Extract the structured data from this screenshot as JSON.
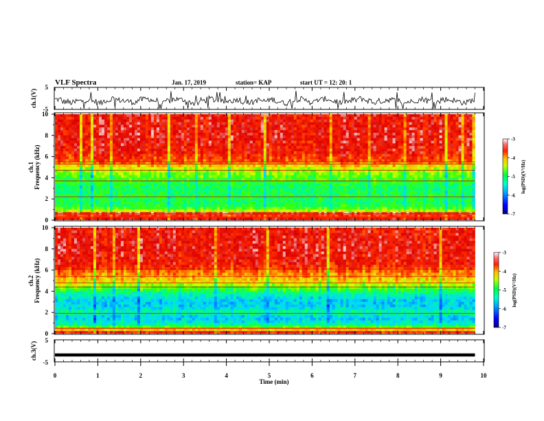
{
  "header": {
    "title": "VLF Spectra",
    "date": "Jan. 17, 2019",
    "station": "station= KAP",
    "start": "start  UT =   12: 20: 1"
  },
  "chart_data": [
    {
      "type": "line",
      "panel": "ch1-waveform",
      "ylabel": "ch.1(V)",
      "ylim": [
        -5,
        5
      ],
      "yticks": [
        "5",
        "-5"
      ],
      "xlim": [
        0,
        10
      ],
      "samples": [
        -0.5,
        -1.6,
        -2.1,
        -1.3,
        -0.8,
        -1.5,
        -2.2,
        -1.0,
        0.0,
        -0.9,
        -1.4,
        -1.8,
        -0.6,
        -0.3,
        -1.1,
        -2.5,
        -1.2,
        -0.4,
        -0.7,
        -1.9,
        -2.4,
        -1.0,
        -0.2,
        -0.8,
        -1.7,
        -1.1,
        -0.5,
        -1.5,
        -2.0,
        -0.9,
        -1.3,
        -0.6,
        -1.6,
        -2.3,
        -1.2,
        -0.4,
        -1.0,
        -1.8,
        -0.7,
        -0.3,
        -1.4,
        -2.1,
        -1.5,
        -0.8,
        -0.2,
        -1.1,
        -1.9,
        -1.3,
        -0.6,
        -1.0,
        -2.2,
        -1.6,
        -0.9,
        -0.4,
        -1.2,
        -1.7,
        -0.5,
        -0.8,
        -1.5,
        -2.0,
        -1.1,
        -0.3
      ]
    },
    {
      "type": "heatmap",
      "panel": "ch1-spectrogram",
      "ylabel": "ch.1\nFrequency (kHz)",
      "ylim": [
        0,
        10
      ],
      "yticks": [
        "0",
        "2",
        "4",
        "6",
        "8",
        "10"
      ],
      "xlim": [
        0,
        10
      ],
      "profile": [
        {
          "f": 0.0,
          "level": 0.95
        },
        {
          "f": 0.3,
          "level": 0.75
        },
        {
          "f": 0.6,
          "level": 0.95
        },
        {
          "f": 0.9,
          "level": 0.55
        },
        {
          "f": 1.5,
          "level": 0.42
        },
        {
          "f": 2.2,
          "level": 0.45
        },
        {
          "f": 3.0,
          "level": 0.42
        },
        {
          "f": 3.8,
          "level": 0.48
        },
        {
          "f": 4.5,
          "level": 0.55
        },
        {
          "f": 5.0,
          "level": 0.62
        },
        {
          "f": 5.5,
          "level": 0.78
        },
        {
          "f": 6.5,
          "level": 0.86
        },
        {
          "f": 8.0,
          "level": 0.88
        },
        {
          "f": 10.0,
          "level": 0.86
        }
      ],
      "lines_khz": [
        0.3,
        0.6,
        2.2,
        3.7,
        4.7,
        5.3,
        5.5
      ],
      "colorbar": {
        "label": "log(PSD)(V²/Hz)",
        "ticks": [
          "-3",
          "-4",
          "-5",
          "-6",
          "-7"
        ],
        "range": [
          -7,
          -3
        ]
      }
    },
    {
      "type": "heatmap",
      "panel": "ch2-spectrogram",
      "ylabel": "ch.2\nFrequency (kHz)",
      "ylim": [
        0,
        10
      ],
      "yticks": [
        "0",
        "2",
        "4",
        "6",
        "8",
        "10"
      ],
      "xlim": [
        0,
        10
      ],
      "profile": [
        {
          "f": 0.0,
          "level": 0.9
        },
        {
          "f": 0.4,
          "level": 0.65
        },
        {
          "f": 0.8,
          "level": 0.38
        },
        {
          "f": 1.5,
          "level": 0.28
        },
        {
          "f": 2.0,
          "level": 0.4
        },
        {
          "f": 2.5,
          "level": 0.3
        },
        {
          "f": 3.2,
          "level": 0.3
        },
        {
          "f": 4.0,
          "level": 0.42
        },
        {
          "f": 4.5,
          "level": 0.55
        },
        {
          "f": 5.0,
          "level": 0.65
        },
        {
          "f": 5.6,
          "level": 0.72
        },
        {
          "f": 6.5,
          "level": 0.85
        },
        {
          "f": 8.0,
          "level": 0.88
        },
        {
          "f": 10.0,
          "level": 0.86
        }
      ],
      "lines_khz": [
        0.5,
        1.9,
        4.4,
        4.8,
        5.4,
        6.1
      ],
      "colorbar": {
        "label": "log(PSD)(V²/Hz)",
        "ticks": [
          "-3",
          "-4",
          "-5",
          "-6",
          "-7"
        ],
        "range": [
          -7,
          -3
        ]
      }
    },
    {
      "type": "line",
      "panel": "ch3-waveform",
      "ylabel": "ch.3(V)",
      "ylim": [
        -5,
        5
      ],
      "yticks": [
        "5",
        "-5"
      ],
      "xlim": [
        0,
        10
      ],
      "values": [
        -2.0,
        -2.0
      ]
    }
  ],
  "xaxis": {
    "label": "Time (min)",
    "ticks": [
      "0",
      "1",
      "2",
      "3",
      "4",
      "5",
      "6",
      "7",
      "8",
      "9",
      "10"
    ],
    "data_end_min": 9.8
  },
  "colors": {
    "colormap": [
      "#000088",
      "#0000ff",
      "#0070ff",
      "#00d8ff",
      "#00ff80",
      "#40ff00",
      "#d8ff00",
      "#ffb000",
      "#ff3000",
      "#dd0000",
      "#ffffff"
    ]
  }
}
